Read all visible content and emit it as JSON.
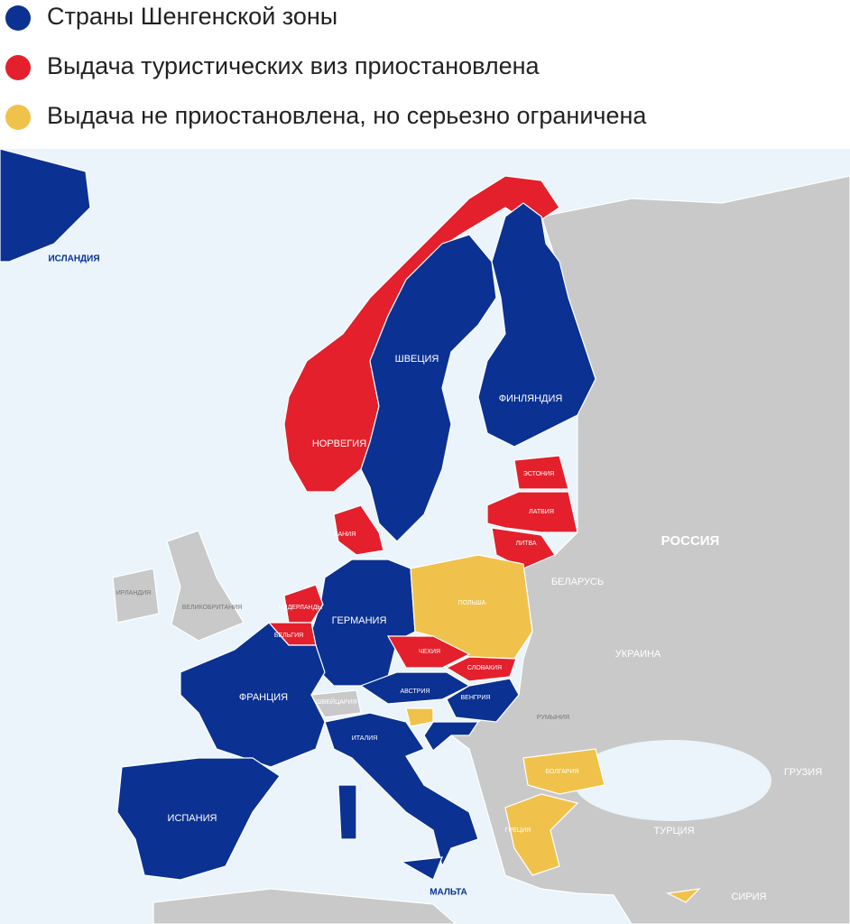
{
  "legend": [
    {
      "label": "Страны Шенгенской зоны",
      "color": "#0b3192"
    },
    {
      "label": "Выдача туристических виз приостановлена",
      "color": "#e3202c"
    },
    {
      "label": "Выдача не приостановлена, но серьезно ограничена",
      "color": "#f0c24b"
    }
  ],
  "labels": [
    {
      "text": "ИСЛАНДИЯ"
    },
    {
      "text": "ШВЕЦИЯ"
    },
    {
      "text": "ФИНЛЯНДИЯ"
    },
    {
      "text": "НОРВЕГИЯ"
    },
    {
      "text": "ЭСТОНИЯ"
    },
    {
      "text": "ЛАТВИЯ"
    },
    {
      "text": "ЛИТВА"
    },
    {
      "text": "ДАНИЯ"
    },
    {
      "text": "РОССИЯ"
    },
    {
      "text": "БЕЛАРУСЬ"
    },
    {
      "text": "ПОЛЬША"
    },
    {
      "text": "ГЕРМАНИЯ"
    },
    {
      "text": "НИДЕРЛАНДЫ"
    },
    {
      "text": "БЕЛЬГИЯ"
    },
    {
      "text": "ФРАНЦИЯ"
    },
    {
      "text": "ЧЕХИЯ"
    },
    {
      "text": "СЛОВАКИЯ"
    },
    {
      "text": "АВСТРИЯ"
    },
    {
      "text": "ВЕНГРИЯ"
    },
    {
      "text": "УКРАИНА"
    },
    {
      "text": "ШВЕЙЦАРИЯ"
    },
    {
      "text": "ИТАЛИЯ"
    },
    {
      "text": "РУМЫНИЯ"
    },
    {
      "text": "БОЛГАРИЯ"
    },
    {
      "text": "ИСПАНИЯ"
    },
    {
      "text": "ГРЕЦИЯ"
    },
    {
      "text": "ТУРЦИЯ"
    },
    {
      "text": "ГРУЗИЯ"
    },
    {
      "text": "МАЛЬТА"
    },
    {
      "text": "СИРИЯ"
    },
    {
      "text": "ИРЛАНДИЯ"
    },
    {
      "text": "ВЕЛИКОБРИТАНИЯ"
    }
  ]
}
